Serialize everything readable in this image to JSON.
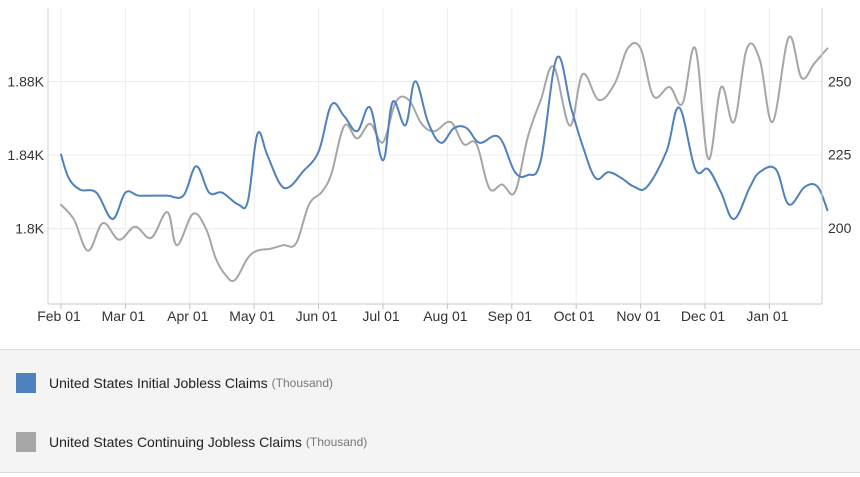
{
  "chart_data": {
    "type": "line",
    "x_ticks": [
      "Feb 01",
      "Mar 01",
      "Apr 01",
      "May 01",
      "Jun 01",
      "Jul 01",
      "Aug 01",
      "Sep 01",
      "Oct 01",
      "Nov 01",
      "Dec 01",
      "Jan 01"
    ],
    "left_axis": {
      "ticks": [
        "1.8K",
        "1.84K",
        "1.88K"
      ],
      "tick_values": [
        1800,
        1840,
        1880
      ],
      "range": [
        1759,
        1920
      ]
    },
    "right_axis": {
      "ticks": [
        "200",
        "225",
        "250"
      ],
      "tick_values": [
        200,
        225,
        250
      ],
      "range": [
        174,
        275
      ]
    },
    "grid": true,
    "series": [
      {
        "name": "United States Initial Jobless Claims",
        "unit": "(Thousand)",
        "axis": "right",
        "color": "#4f81bd",
        "x": [
          0,
          0.12,
          0.3,
          0.55,
          0.8,
          1.0,
          1.2,
          1.45,
          1.65,
          1.9,
          2.1,
          2.3,
          2.5,
          2.75,
          2.9,
          3.05,
          3.2,
          3.4,
          3.55,
          3.75,
          4.0,
          4.2,
          4.4,
          4.6,
          4.8,
          5.0,
          5.15,
          5.35,
          5.5,
          5.7,
          5.9,
          6.1,
          6.3,
          6.5,
          6.8,
          7.05,
          7.25,
          7.45,
          7.7,
          7.92,
          8.1,
          8.3,
          8.5,
          8.7,
          8.9,
          9.1,
          9.4,
          9.6,
          9.85,
          10.05,
          10.25,
          10.45,
          10.7,
          10.85,
          11.1,
          11.3,
          11.55,
          11.75,
          11.9
        ],
        "y": [
          225,
          217,
          213,
          212,
          203,
          212,
          211,
          211,
          211,
          211,
          221,
          212,
          212,
          208,
          209,
          232,
          225,
          215,
          214,
          219,
          226,
          242,
          238,
          233,
          241,
          223,
          243,
          235,
          250,
          236,
          229,
          234,
          234,
          229,
          231,
          219,
          218,
          223,
          258,
          241,
          228,
          217,
          219,
          217,
          214,
          214,
          226,
          241,
          220,
          220,
          212,
          203,
          214,
          219,
          220,
          208,
          214,
          214,
          206
        ]
      },
      {
        "name": "United States Continuing Jobless Claims",
        "unit": "(Thousand)",
        "axis": "left",
        "color": "#a6a6a6",
        "x": [
          0,
          0.2,
          0.42,
          0.65,
          0.9,
          1.15,
          1.4,
          1.65,
          1.8,
          2.05,
          2.25,
          2.4,
          2.55,
          2.7,
          2.9,
          3.05,
          3.25,
          3.45,
          3.65,
          3.85,
          4.05,
          4.2,
          4.4,
          4.6,
          4.8,
          5.0,
          5.2,
          5.4,
          5.6,
          5.8,
          6.05,
          6.25,
          6.45,
          6.65,
          6.85,
          7.05,
          7.25,
          7.45,
          7.65,
          7.9,
          8.1,
          8.35,
          8.6,
          8.8,
          9.0,
          9.2,
          9.45,
          9.65,
          9.85,
          10.05,
          10.25,
          10.45,
          10.65,
          10.85,
          11.05,
          11.3,
          11.5,
          11.7,
          11.9
        ],
        "y": [
          1813,
          1805,
          1788,
          1803,
          1794,
          1801,
          1795,
          1809,
          1791,
          1808,
          1800,
          1784,
          1775,
          1772,
          1784,
          1788,
          1789,
          1791,
          1792,
          1813,
          1820,
          1830,
          1856,
          1849,
          1857,
          1847,
          1869,
          1870,
          1857,
          1853,
          1858,
          1846,
          1846,
          1822,
          1824,
          1820,
          1850,
          1870,
          1888,
          1856,
          1884,
          1870,
          1879,
          1898,
          1898,
          1872,
          1877,
          1868,
          1898,
          1838,
          1877,
          1858,
          1898,
          1892,
          1858,
          1904,
          1882,
          1890,
          1898
        ]
      }
    ]
  }
}
